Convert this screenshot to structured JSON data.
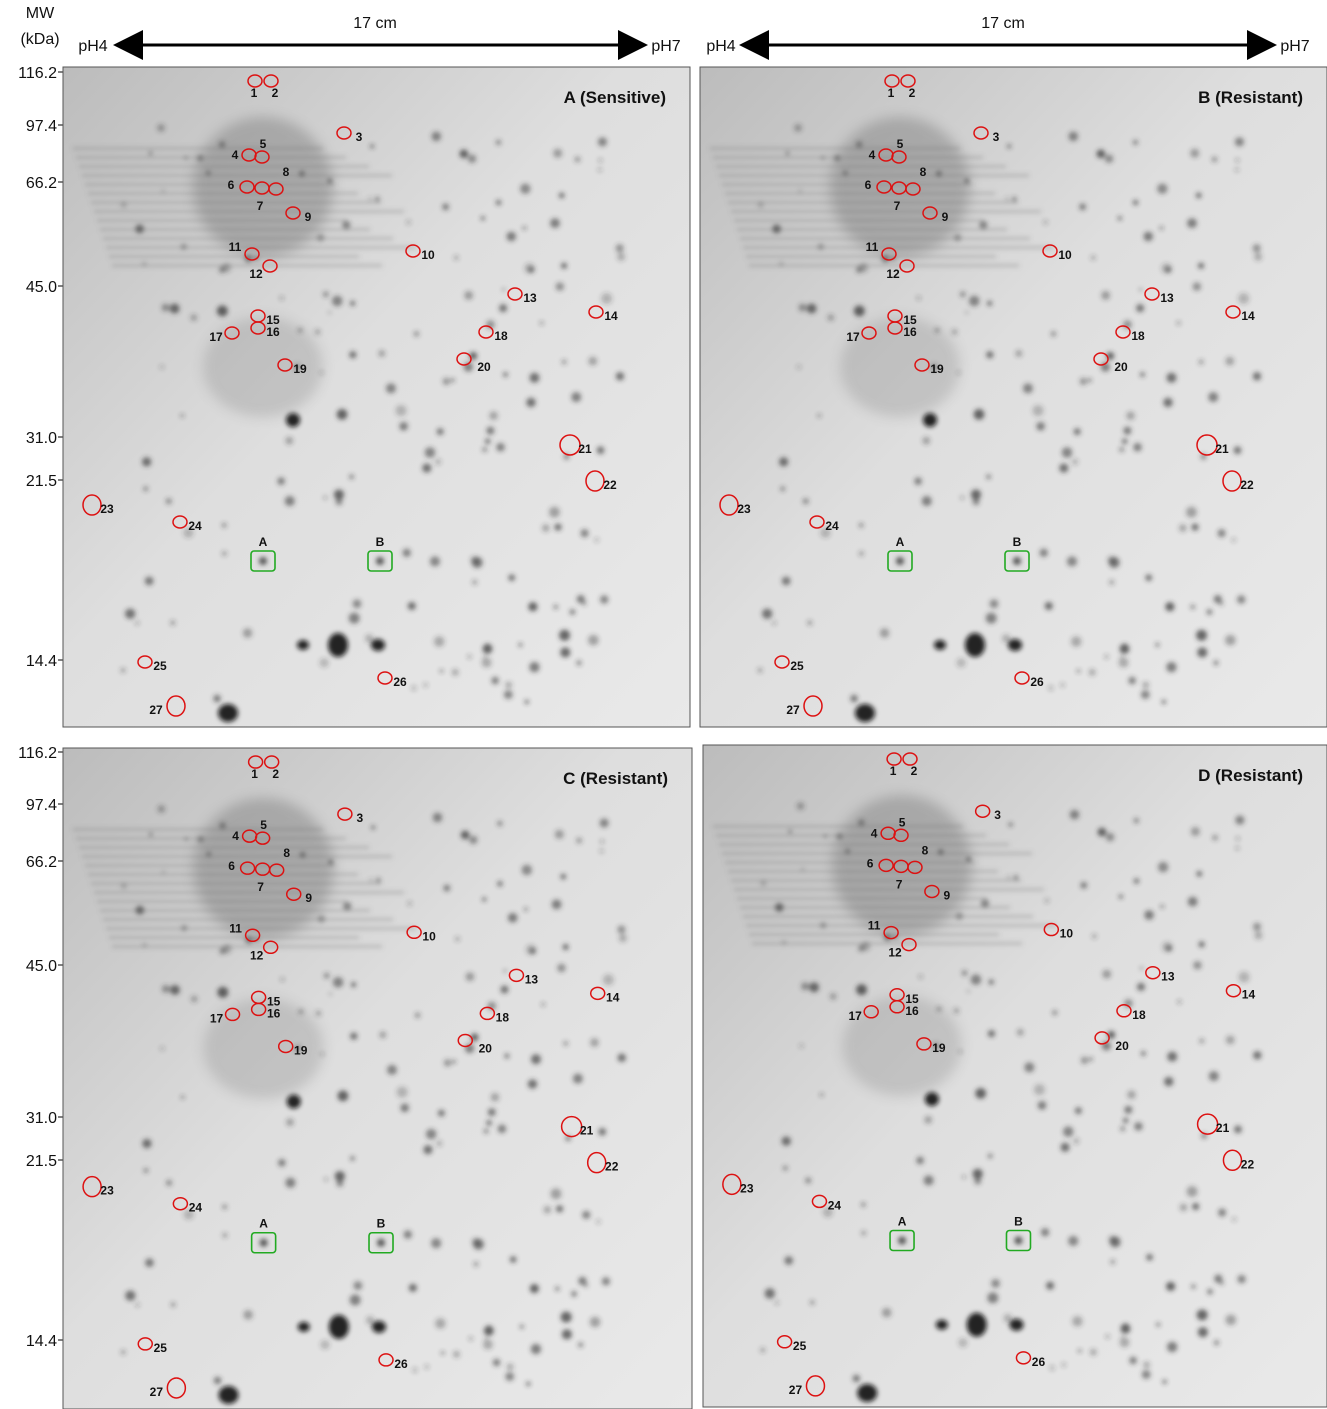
{
  "header": {
    "mw": "MW",
    "unit": "(kDa)",
    "width_label": "17 cm",
    "ph_low": "pH4",
    "ph_high": "pH7"
  },
  "mw_labels": [
    "116.2",
    "97.4",
    "66.2",
    "45.0",
    "31.0",
    "21.5",
    "14.4"
  ],
  "panels": [
    {
      "title": "A (Sensitive)"
    },
    {
      "title": "B (Resistant)"
    },
    {
      "title": "C (Resistant)"
    },
    {
      "title": "D (Resistant)"
    }
  ],
  "spot_labels": [
    "1",
    "2",
    "3",
    "4",
    "5",
    "6",
    "7",
    "8",
    "9",
    "10",
    "11",
    "12",
    "13",
    "14",
    "15",
    "16",
    "17",
    "18",
    "19",
    "20",
    "21",
    "22",
    "23",
    "24",
    "25",
    "26",
    "27"
  ],
  "marker_labels": [
    "A",
    "B"
  ]
}
